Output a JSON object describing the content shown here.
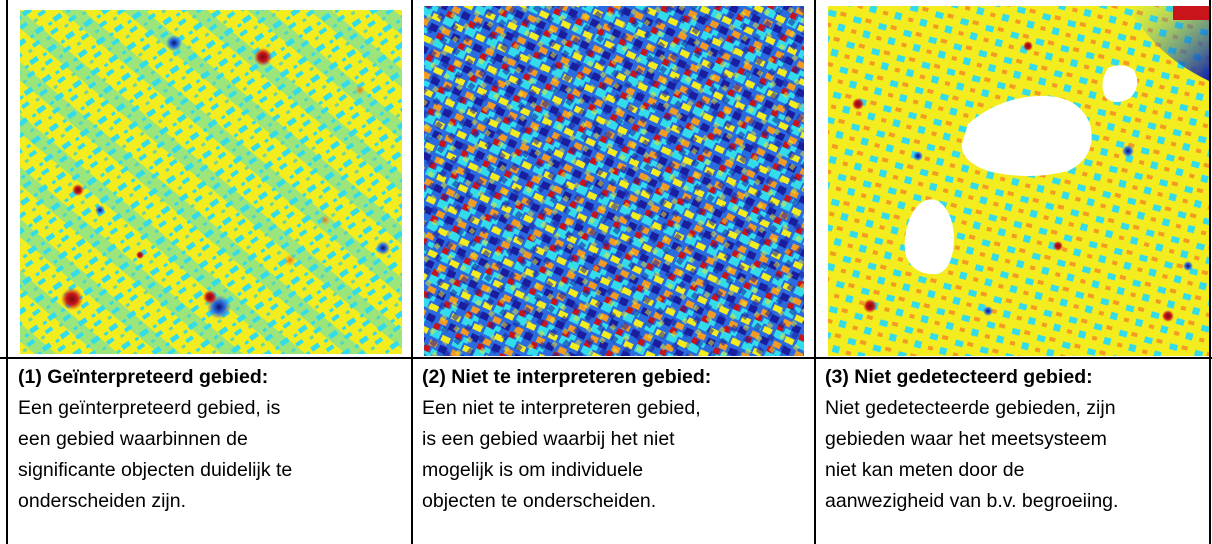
{
  "colors": {
    "map_yellow": "#f3ec1f",
    "map_cyan": "#33dcea",
    "map_orange": "#f39a22",
    "map_red": "#c8141a",
    "map_darkblue": "#1a1e9e",
    "map_blue": "#2a6be0",
    "border": "#000000"
  },
  "cells": [
    {
      "image_icon": "magnetometer-map-interpreted",
      "title": "(1) Geïnterpreteerd gebied:",
      "lines": [
        "Een geïnterpreteerd gebied, is",
        "een gebied waarbinnen de",
        "significante objecten duidelijk te",
        "onderscheiden zijn."
      ]
    },
    {
      "image_icon": "magnetometer-map-uninterpretable",
      "title": "(2) Niet te interpreteren gebied:",
      "lines": [
        "Een niet te interpreteren gebied,",
        "is een gebied waarbij het niet",
        "mogelijk is om individuele",
        "objecten te onderscheiden."
      ]
    },
    {
      "image_icon": "magnetometer-map-undetected",
      "title": "(3) Niet gedetecteerd gebied:",
      "lines": [
        "Niet gedetecteerde gebieden, zijn",
        "gebieden waar het meetsysteem",
        "niet kan meten door de",
        "aanwezigheid van b.v. begroeiing."
      ]
    }
  ]
}
